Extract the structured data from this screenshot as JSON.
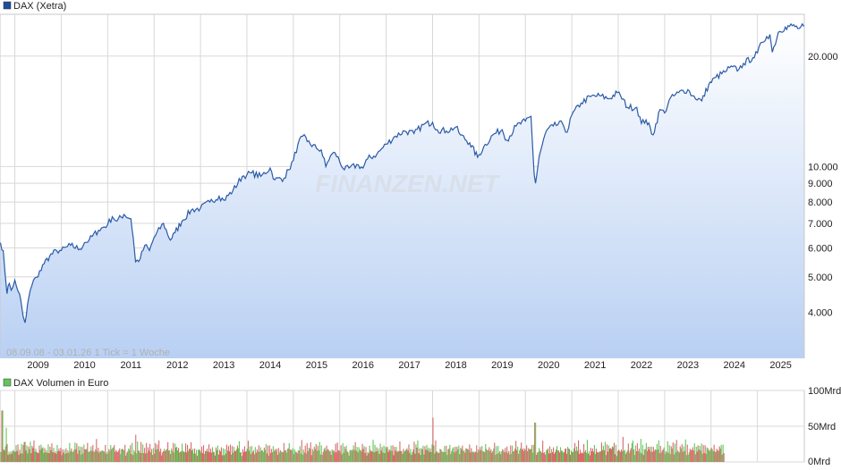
{
  "colors": {
    "line": "#2a5aa8",
    "area_top": "#ffffff",
    "area_bottom": "#b9d0f3",
    "grid": "#d8d8d8",
    "volume_up": "#62c65a",
    "volume_down": "#d86a6a",
    "legend_price": "#1f4e9a",
    "legend_volume": "#62c65a"
  },
  "watermark": "FINANZEN.NET",
  "range_label": "08.09.08 - 03.01.26   1 Tick = 1 Woche",
  "chart_data": [
    {
      "type": "line",
      "legend": "DAX (Xetra)",
      "scale": "log",
      "ylim": [
        3000,
        26000
      ],
      "y_ticks": [
        {
          "value": 4000,
          "label": "4.000"
        },
        {
          "value": 5000,
          "label": "5.000"
        },
        {
          "value": 6000,
          "label": "6.000"
        },
        {
          "value": 7000,
          "label": "7.000"
        },
        {
          "value": 8000,
          "label": "8.000"
        },
        {
          "value": 9000,
          "label": "9.000"
        },
        {
          "value": 10000,
          "label": "10.000"
        },
        {
          "value": 20000,
          "label": "20.000"
        }
      ],
      "xlim": [
        2008.68,
        2026.01
      ],
      "x_ticks": [
        "2009",
        "2010",
        "2011",
        "2012",
        "2013",
        "2014",
        "2015",
        "2016",
        "2017",
        "2018",
        "2019",
        "2020",
        "2021",
        "2022",
        "2023",
        "2024",
        "2025"
      ],
      "grid": true,
      "legend_position": "top-left",
      "x": [
        2008.69,
        2008.75,
        2008.79,
        2008.83,
        2008.88,
        2008.92,
        2008.96,
        2009.0,
        2009.1,
        2009.18,
        2009.22,
        2009.3,
        2009.4,
        2009.5,
        2009.6,
        2009.75,
        2009.9,
        2010.0,
        2010.2,
        2010.4,
        2010.5,
        2010.6,
        2010.8,
        2011.0,
        2011.1,
        2011.2,
        2011.35,
        2011.5,
        2011.55,
        2011.6,
        2011.7,
        2011.8,
        2011.9,
        2012.0,
        2012.2,
        2012.35,
        2012.45,
        2012.6,
        2012.8,
        2013.0,
        2013.2,
        2013.4,
        2013.5,
        2013.7,
        2013.9,
        2014.0,
        2014.1,
        2014.3,
        2014.5,
        2014.6,
        2014.8,
        2014.9,
        2015.0,
        2015.1,
        2015.2,
        2015.3,
        2015.5,
        2015.6,
        2015.7,
        2015.8,
        2015.9,
        2016.1,
        2016.2,
        2016.4,
        2016.5,
        2016.6,
        2016.8,
        2017.0,
        2017.2,
        2017.4,
        2017.6,
        2017.8,
        2018.0,
        2018.1,
        2018.3,
        2018.5,
        2018.6,
        2018.8,
        2018.97,
        2019.1,
        2019.3,
        2019.5,
        2019.6,
        2019.8,
        2020.0,
        2020.12,
        2020.19,
        2020.22,
        2020.3,
        2020.45,
        2020.6,
        2020.8,
        2020.9,
        2021.0,
        2021.2,
        2021.4,
        2021.6,
        2021.8,
        2021.98,
        2022.05,
        2022.2,
        2022.4,
        2022.5,
        2022.6,
        2022.75,
        2022.9,
        2023.0,
        2023.1,
        2023.3,
        2023.5,
        2023.6,
        2023.8,
        2023.95,
        2024.1,
        2024.3,
        2024.4,
        2024.6,
        2024.7,
        2024.9,
        2025.0,
        2025.1,
        2025.2,
        2025.27,
        2025.32,
        2025.45,
        2025.6,
        2025.75,
        2025.9,
        2026.0
      ],
      "y": [
        6200,
        5900,
        5100,
        4500,
        4800,
        4600,
        4700,
        4900,
        4500,
        3900,
        3750,
        4400,
        4900,
        5000,
        5400,
        5700,
        5900,
        5900,
        6100,
        5950,
        6200,
        6300,
        6700,
        6950,
        7300,
        7100,
        7400,
        7200,
        6400,
        5500,
        5600,
        6100,
        5900,
        6400,
        7000,
        6300,
        6600,
        7100,
        7600,
        7700,
        8000,
        8300,
        8100,
        8600,
        9400,
        9500,
        9600,
        9400,
        9900,
        9200,
        9300,
        9800,
        10400,
        11500,
        12100,
        11700,
        11200,
        11100,
        10000,
        10700,
        10900,
        9800,
        9900,
        10100,
        9900,
        10500,
        10800,
        11500,
        12100,
        12500,
        12300,
        13000,
        13200,
        12600,
        12500,
        12800,
        12200,
        11600,
        10600,
        11300,
        12200,
        12600,
        11800,
        12900,
        13300,
        13700,
        9500,
        9000,
        10700,
        12500,
        12900,
        13100,
        12400,
        13800,
        14900,
        15500,
        15600,
        15300,
        15900,
        15600,
        14500,
        14500,
        13100,
        13400,
        12200,
        14300,
        14000,
        15200,
        15900,
        16200,
        15600,
        15100,
        16700,
        17500,
        18100,
        18600,
        18400,
        19100,
        19800,
        20400,
        21800,
        22600,
        22900,
        20500,
        23200,
        24000,
        24200,
        23800,
        24100
      ]
    },
    {
      "type": "bar",
      "legend": "DAX Volumen in Euro",
      "ylim": [
        0,
        100
      ],
      "y_ticks": [
        {
          "value": 0,
          "label": "0Mrd"
        },
        {
          "value": 50,
          "label": "50Mrd"
        },
        {
          "value": 100,
          "label": "100Mrd"
        }
      ],
      "x_start": 2008.69,
      "x_end": 2024.28,
      "bar_step_weeks": 1,
      "typical_values": [
        12,
        18,
        15,
        22,
        14,
        20,
        16,
        25,
        13,
        19
      ],
      "spikes": [
        {
          "x": 2008.72,
          "value": 72
        },
        {
          "x": 2008.8,
          "value": 48
        },
        {
          "x": 2009.2,
          "value": 28
        },
        {
          "x": 2011.6,
          "value": 38
        },
        {
          "x": 2018.0,
          "value": 62
        },
        {
          "x": 2020.2,
          "value": 55
        },
        {
          "x": 2022.1,
          "value": 35
        },
        {
          "x": 2022.3,
          "value": 30
        }
      ]
    }
  ]
}
